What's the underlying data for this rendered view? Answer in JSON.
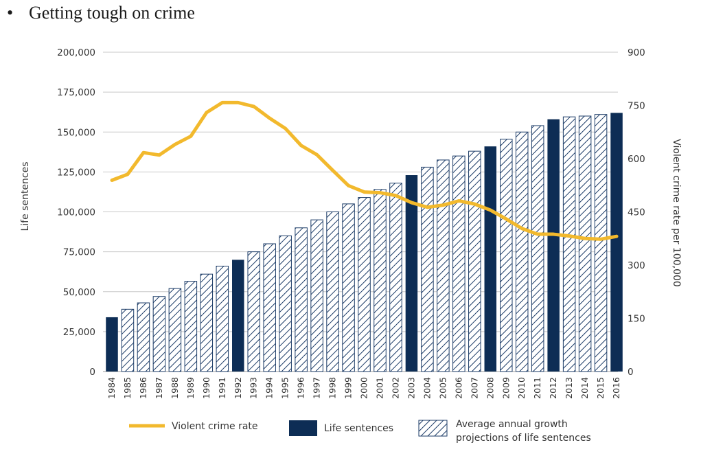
{
  "slide": {
    "bullet": "•",
    "heading": "Getting tough on crime"
  },
  "colors": {
    "bar_solid": "#0d2d55",
    "hatch_stroke": "#1a3a66",
    "line": "#f2b92d",
    "grid": "#c8c8c8",
    "text": "#333333"
  },
  "chart_data": {
    "type": "bar",
    "title": "",
    "ylabel": "Life sentences",
    "y2label": "Violent crime rate per 100,000",
    "ylim": [
      0,
      200000
    ],
    "y2lim": [
      0,
      900
    ],
    "yticks": [
      0,
      25000,
      50000,
      75000,
      100000,
      125000,
      150000,
      175000,
      200000
    ],
    "ytick_labels": [
      "0",
      "25,000",
      "50,000",
      "75,000",
      "100,000",
      "125,000",
      "150,000",
      "175,000",
      "200,000"
    ],
    "y2ticks": [
      0,
      150,
      300,
      450,
      600,
      750,
      900
    ],
    "y2tick_labels": [
      "0",
      "150",
      "300",
      "450",
      "600",
      "750",
      "900"
    ],
    "grid": true,
    "legend_position": "bottom",
    "categories": [
      "1984",
      "1985",
      "1986",
      "1987",
      "1988",
      "1989",
      "1990",
      "1991",
      "1992",
      "1993",
      "1994",
      "1995",
      "1996",
      "1997",
      "1998",
      "1999",
      "2000",
      "2001",
      "2002",
      "2003",
      "2004",
      "2005",
      "2006",
      "2007",
      "2008",
      "2009",
      "2010",
      "2011",
      "2012",
      "2013",
      "2014",
      "2015",
      "2016"
    ],
    "series": [
      {
        "name": "Life sentences",
        "kind": "bar-solid",
        "values": [
          34000,
          null,
          null,
          null,
          null,
          null,
          null,
          null,
          70000,
          null,
          null,
          null,
          null,
          null,
          null,
          null,
          null,
          null,
          null,
          123000,
          null,
          null,
          null,
          null,
          141000,
          null,
          null,
          null,
          158000,
          null,
          null,
          null,
          162000
        ]
      },
      {
        "name": "Average annual growth projections of life sentences",
        "kind": "bar-hatched",
        "values": [
          null,
          39000,
          43000,
          47000,
          52000,
          56500,
          61000,
          66000,
          null,
          75000,
          80000,
          85000,
          90000,
          95000,
          100000,
          105000,
          109000,
          114000,
          118000,
          null,
          128000,
          132500,
          135000,
          138000,
          null,
          145500,
          150000,
          154000,
          null,
          159500,
          160000,
          161000,
          null
        ]
      },
      {
        "name": "Violent crime rate",
        "kind": "line",
        "axis": "right",
        "values": [
          539,
          556,
          617,
          610,
          640,
          663,
          730,
          758,
          758,
          747,
          714,
          685,
          637,
          611,
          567,
          524,
          506,
          504,
          496,
          476,
          463,
          469,
          481,
          472,
          455,
          430,
          403,
          387,
          387,
          382,
          375,
          373,
          381
        ]
      }
    ]
  },
  "legend": {
    "line_label": "Violent crime rate",
    "solid_label": "Life sentences",
    "hatched_label_line1": "Average annual growth",
    "hatched_label_line2": "projections of life sentences"
  }
}
